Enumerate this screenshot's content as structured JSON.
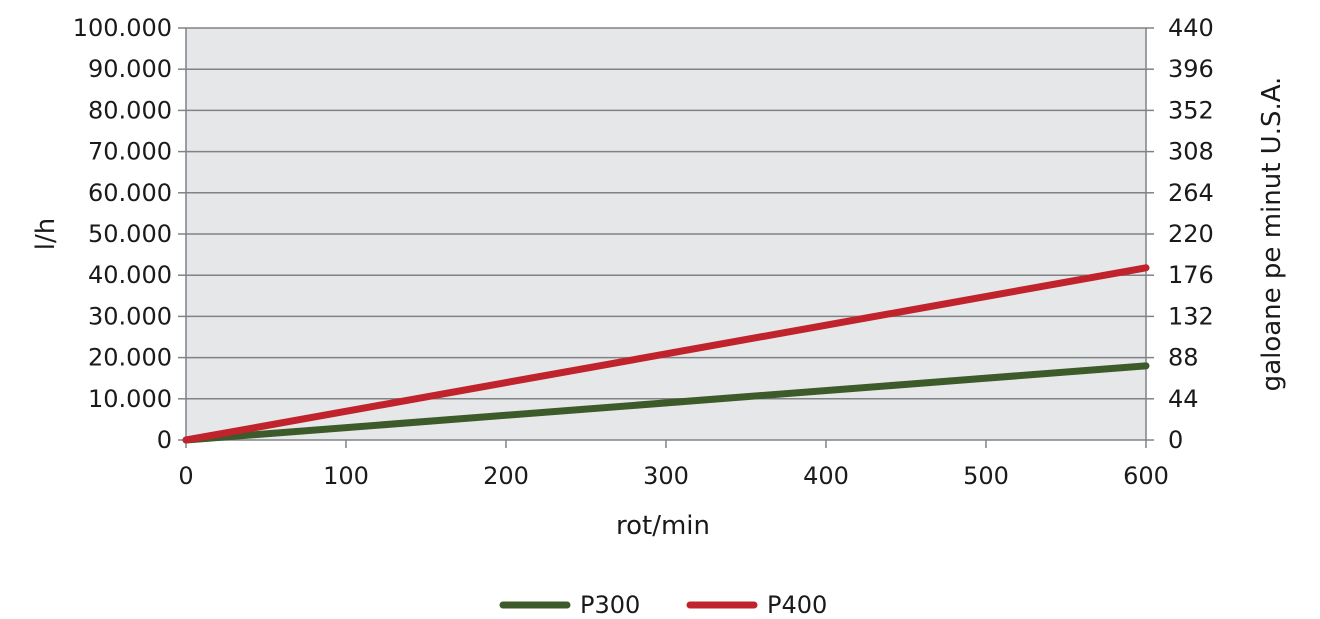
{
  "chart_data": {
    "type": "line",
    "xlabel": "rot/min",
    "ylabel": "l/h",
    "y2label": "galoane pe minut U.S.A.",
    "xlim": [
      0,
      600
    ],
    "ylim": [
      0,
      100000
    ],
    "y2lim": [
      0,
      440
    ],
    "x_ticks": [
      "0",
      "100",
      "200",
      "300",
      "400",
      "500",
      "600"
    ],
    "y_ticks": [
      "0",
      "10.000",
      "20.000",
      "30.000",
      "40.000",
      "50.000",
      "60.000",
      "70.000",
      "80.000",
      "90.000",
      "100.000"
    ],
    "y2_ticks": [
      "0",
      "44",
      "88",
      "132",
      "176",
      "220",
      "264",
      "308",
      "352",
      "396",
      "440"
    ],
    "grid": "horizontal",
    "legend_position": "bottom",
    "background_color": "#e6e7e8",
    "series": [
      {
        "name": "P300",
        "color": "#3d5a2a",
        "x": [
          0,
          600
        ],
        "y": [
          0,
          18000
        ]
      },
      {
        "name": "P400",
        "color": "#c0232c",
        "x": [
          0,
          600
        ],
        "y": [
          0,
          41800
        ]
      }
    ]
  }
}
